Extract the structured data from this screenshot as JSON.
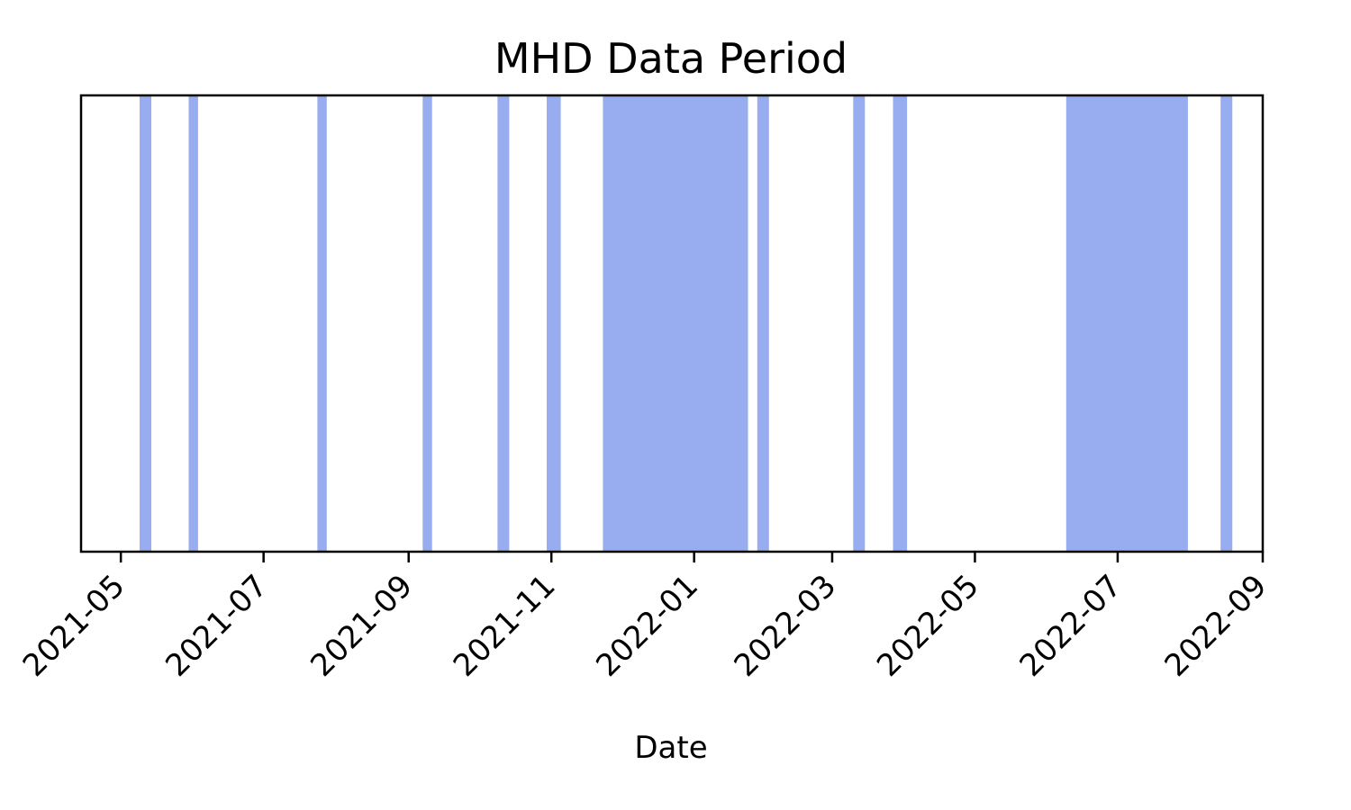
{
  "chart_data": {
    "type": "event-spans",
    "title": "MHD Data Period",
    "xlabel": "Date",
    "ylabel": "",
    "xlim": [
      "2021-04-14",
      "2022-09-01"
    ],
    "x_ticks": [
      "2021-05",
      "2021-07",
      "2021-09",
      "2021-11",
      "2022-01",
      "2022-03",
      "2022-05",
      "2022-07",
      "2022-09"
    ],
    "y_ticks": [],
    "grid": false,
    "legend": "none",
    "span_color": "#4169e1",
    "span_opacity": 0.55,
    "data_periods": [
      {
        "start": "2021-05-09",
        "end": "2021-05-14"
      },
      {
        "start": "2021-05-30",
        "end": "2021-06-03"
      },
      {
        "start": "2021-07-24",
        "end": "2021-07-28"
      },
      {
        "start": "2021-09-07",
        "end": "2021-09-11"
      },
      {
        "start": "2021-10-09",
        "end": "2021-10-14"
      },
      {
        "start": "2021-10-30",
        "end": "2021-11-05"
      },
      {
        "start": "2021-11-23",
        "end": "2022-01-24"
      },
      {
        "start": "2022-01-28",
        "end": "2022-02-02"
      },
      {
        "start": "2022-03-10",
        "end": "2022-03-15"
      },
      {
        "start": "2022-03-27",
        "end": "2022-04-02"
      },
      {
        "start": "2022-06-09",
        "end": "2022-07-31"
      },
      {
        "start": "2022-08-14",
        "end": "2022-08-19"
      }
    ]
  }
}
